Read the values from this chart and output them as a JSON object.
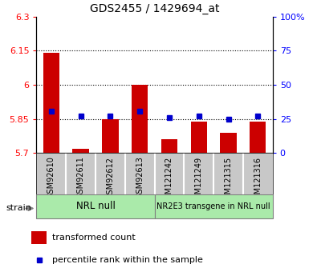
{
  "title": "GDS2455 / 1429694_at",
  "samples": [
    "GSM92610",
    "GSM92611",
    "GSM92612",
    "GSM92613",
    "GSM121242",
    "GSM121249",
    "GSM121315",
    "GSM121316"
  ],
  "transformed_counts": [
    6.14,
    5.72,
    5.85,
    6.0,
    5.76,
    5.84,
    5.79,
    5.84
  ],
  "percentile_ranks": [
    31,
    27,
    27,
    31,
    26,
    27,
    25,
    27
  ],
  "ylim_left": [
    5.7,
    6.3
  ],
  "ylim_right": [
    0,
    100
  ],
  "yticks_left": [
    5.7,
    5.85,
    6.0,
    6.15,
    6.3
  ],
  "ytick_labels_left": [
    "5.7",
    "5.85",
    "6",
    "6.15",
    "6.3"
  ],
  "yticks_right": [
    0,
    25,
    50,
    75,
    100
  ],
  "ytick_labels_right": [
    "0",
    "25",
    "50",
    "75",
    "100%"
  ],
  "hlines": [
    5.85,
    6.0,
    6.15
  ],
  "bar_color": "#cc0000",
  "dot_color": "#0000cc",
  "baseline": 5.7,
  "group1_label": "NRL null",
  "group2_label": "NR2E3 transgene in NRL null",
  "group_bg_color": "#aaeaaa",
  "sample_bg_color": "#c8c8c8",
  "legend_bar_label": "transformed count",
  "legend_dot_label": "percentile rank within the sample",
  "strain_label": "strain"
}
